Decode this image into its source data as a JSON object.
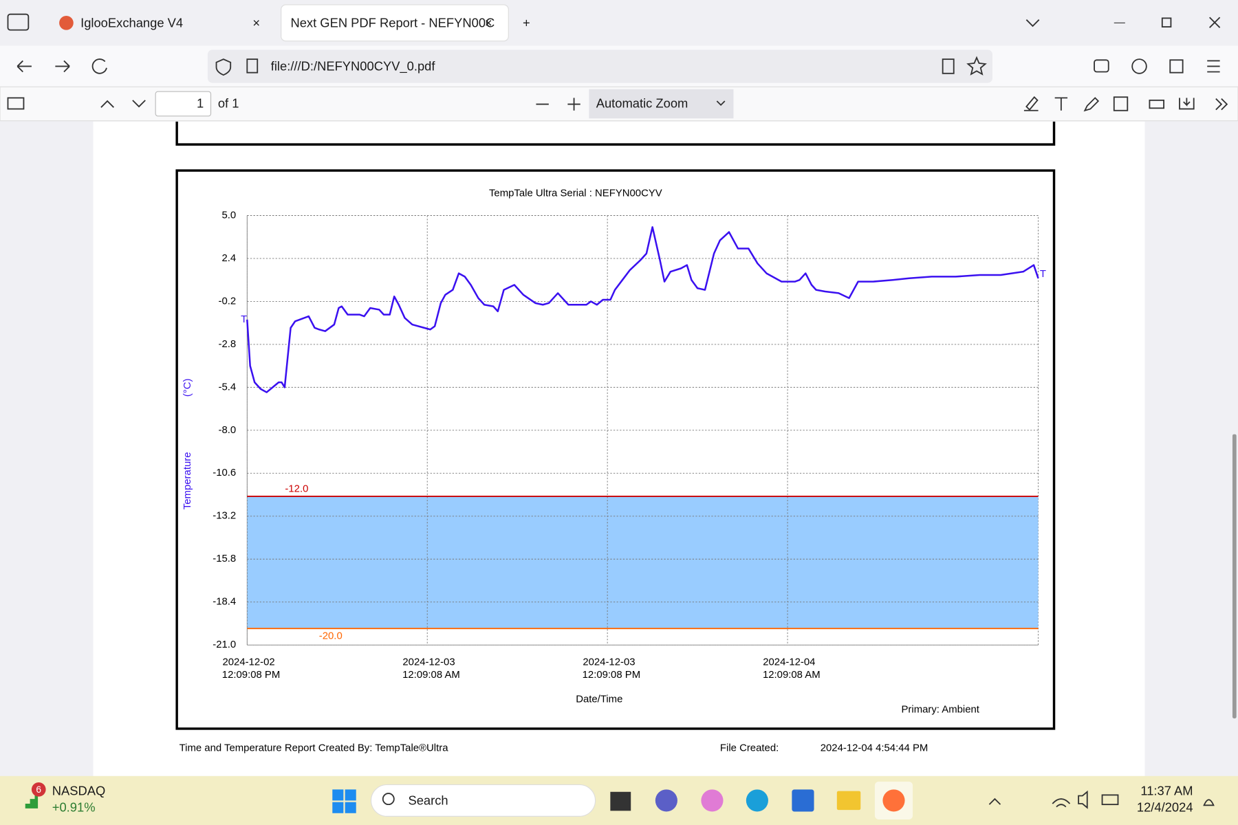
{
  "browser": {
    "tabs": [
      "IglooExchange V4",
      "Next GEN PDF Report - NEFYN00C"
    ],
    "url": "file:///D:/NEFYN00CYV_0.pdf"
  },
  "pdf_toolbar": {
    "page": "1",
    "page_count": "of 1",
    "zoom": "Automatic Zoom"
  },
  "chart_data": {
    "type": "line",
    "title": "TempTale Ultra  Serial : NEFYN00CYV",
    "x_label": "Date/Time",
    "y_label": "Temperature",
    "y_unit": "(°C)",
    "note": "Primary: Ambient",
    "color": "#3a10f0",
    "x": [
      0,
      0.2,
      0.5,
      0.9,
      1.3,
      1.7,
      2.1,
      2.3,
      2.5,
      2.9,
      3.2,
      4.1,
      4.5,
      4.8,
      5.2,
      5.8,
      6.1,
      6.3,
      6.7,
      7.5,
      7.8,
      8.2,
      8.8,
      9.1,
      9.5,
      9.8,
      10.1,
      10.5,
      11.0,
      11.8,
      12.2,
      12.5,
      12.9,
      13.2,
      13.7,
      14.1,
      14.5,
      14.9,
      15.4,
      15.8,
      16.4,
      16.7,
      17.1,
      17.8,
      18.4,
      19.2,
      19.7,
      20.1,
      20.7,
      21.4,
      22.6,
      22.9,
      23.3,
      23.7,
      24.2,
      24.5,
      25.0,
      25.5,
      26.2,
      26.6,
      27.0,
      27.5,
      27.8,
      28.2,
      28.9,
      29.3,
      29.6,
      30.0,
      30.5,
      31.1,
      31.5,
      32.1,
      32.7,
      33.4,
      34.0,
      34.6,
      35.6,
      36.5,
      36.8,
      37.2,
      37.6,
      37.9,
      38.5,
      39.4,
      40.1,
      40.7,
      41.7,
      43.0,
      44.1,
      45.6,
      47.2,
      48.8,
      50.2,
      51.7,
      52.4,
      52.7
    ],
    "values": [
      -1.3,
      -4.1,
      -5.1,
      -5.5,
      -5.7,
      -5.4,
      -5.1,
      -5.1,
      -5.4,
      -1.8,
      -1.4,
      -1.1,
      -1.8,
      -1.9,
      -2.0,
      -1.6,
      -0.6,
      -0.5,
      -1.0,
      -1.0,
      -1.1,
      -0.6,
      -0.7,
      -1.0,
      -1.0,
      0.1,
      -0.4,
      -1.2,
      -1.6,
      -1.8,
      -1.9,
      -1.7,
      -0.3,
      0.2,
      0.5,
      1.5,
      1.3,
      0.8,
      0.0,
      -0.4,
      -0.5,
      -0.8,
      0.5,
      0.8,
      0.2,
      -0.3,
      -0.4,
      -0.3,
      0.3,
      -0.4,
      -0.4,
      -0.2,
      -0.4,
      -0.1,
      -0.1,
      0.5,
      1.1,
      1.7,
      2.3,
      2.7,
      4.3,
      2.3,
      1.0,
      1.6,
      1.8,
      2.0,
      1.1,
      0.6,
      0.5,
      2.7,
      3.5,
      4.0,
      3.0,
      3.0,
      2.1,
      1.5,
      1.0,
      1.0,
      1.1,
      1.5,
      0.8,
      0.5,
      0.4,
      0.3,
      0.0,
      1.0,
      1.0,
      1.1,
      1.2,
      1.3,
      1.3,
      1.4,
      1.4,
      1.6,
      2.0,
      1.2
    ],
    "markers": [
      "T",
      "T"
    ],
    "xlim": [
      0,
      52.7
    ],
    "xticks": [
      {
        "value": 0,
        "label": [
          "2024-12-02",
          "12:09:08 PM"
        ]
      },
      {
        "value": 12,
        "label": [
          "2024-12-03",
          "12:09:08 AM"
        ]
      },
      {
        "value": 24,
        "label": [
          "2024-12-03",
          "12:09:08 PM"
        ]
      },
      {
        "value": 36,
        "label": [
          "2024-12-04",
          "12:09:08 AM"
        ]
      }
    ],
    "ylim": [
      -21,
      5
    ],
    "yticks": [
      {
        "value": 5,
        "label": "5.0"
      },
      2.4,
      -0.2,
      -2.8,
      -5.4,
      {
        "value": -8,
        "label": "-8.0"
      },
      -10.6,
      -13.2,
      -15.8,
      -18.4,
      {
        "value": -21,
        "label": "-21.0"
      }
    ],
    "grid": true,
    "band_color": "#99ccff",
    "limits": [
      {
        "value": -12,
        "label": "-12.0",
        "color": "#cc0000"
      },
      {
        "value": -20,
        "label": "-20.0",
        "color": "#ff6600"
      }
    ]
  },
  "footer": {
    "created_by": "Time and Temperature Report Created By:  TempTale®Ultra",
    "file_created_label": "File Created:",
    "file_created": "2024-12-04  4:54:44 PM"
  },
  "taskbar": {
    "badge": "6",
    "stock_name": "NASDAQ",
    "stock_change": "+0.91%",
    "search": "Search",
    "time": "11:37 AM",
    "date": "12/4/2024"
  }
}
